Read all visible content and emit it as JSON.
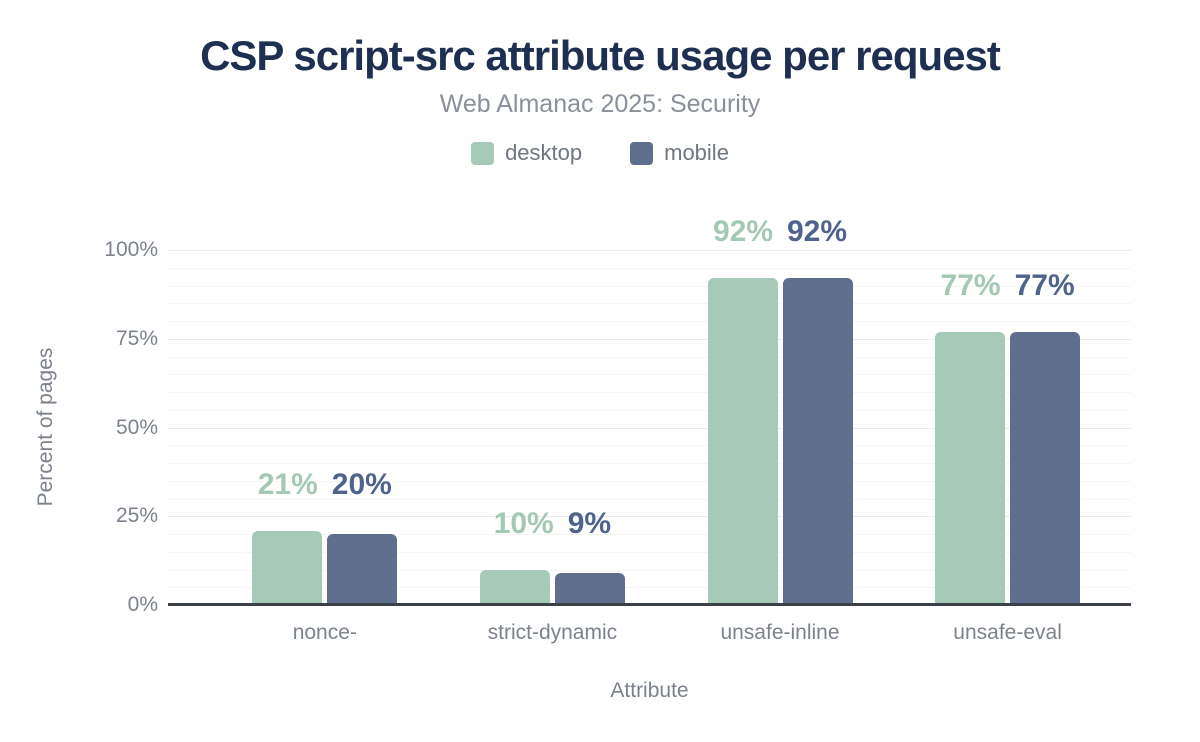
{
  "header": {
    "title": "CSP script-src attribute usage per request",
    "subtitle": "Web Almanac 2025: Security"
  },
  "colors": {
    "title_text": "#1e2f52",
    "subtitle_text": "#8a909b",
    "axis_text": "#7c828c",
    "axis_line": "#3c4148",
    "background": "#ffffff",
    "desktop": "#a6c9b8",
    "mobile": "#5e6e8c"
  },
  "chart_data": {
    "type": "bar",
    "title": "CSP script-src attribute usage per request",
    "subtitle": "Web Almanac 2025: Security",
    "categories": [
      "nonce-",
      "strict-dynamic",
      "unsafe-inline",
      "unsafe-eval"
    ],
    "series": [
      {
        "name": "desktop",
        "color": "#a6c9b8",
        "label_color": "#a3c8b4",
        "values": [
          21,
          10,
          92,
          77
        ],
        "data_labels": [
          "21%",
          "10%",
          "92%",
          "77%"
        ]
      },
      {
        "name": "mobile",
        "color": "#5e6e8c",
        "label_color": "#4f638d",
        "values": [
          20,
          9,
          92,
          77
        ],
        "data_labels": [
          "20%",
          "9%",
          "92%",
          "77%"
        ]
      }
    ],
    "xlabel": "Attribute",
    "ylabel": "Percent of pages",
    "ylim": [
      0,
      100
    ],
    "yticks": [
      {
        "value": 0,
        "label": "0%"
      },
      {
        "value": 25,
        "label": "25%"
      },
      {
        "value": 50,
        "label": "50%"
      },
      {
        "value": 75,
        "label": "75%"
      },
      {
        "value": 100,
        "label": "100%"
      }
    ],
    "grid": {
      "orientation": "horizontal",
      "minor_step": 5,
      "major_step": 25,
      "minor_color": "#f5f5f7",
      "major_color": "#e9eaee"
    },
    "legend_position": "top",
    "data_labels_shown": true
  }
}
